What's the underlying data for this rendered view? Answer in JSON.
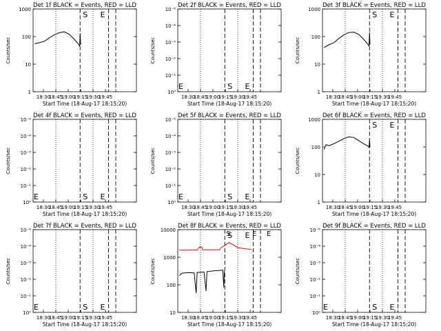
{
  "chart_data": [
    {
      "type": "line",
      "title": "Det 1f BLACK = Events, RED = LLD",
      "ylabel": "Counts/sec",
      "xlabel": "Start Time (18-Aug-17 18:15:20)",
      "yscale": "log",
      "ylim": [
        1,
        1000
      ],
      "yticks": [
        "1",
        "10",
        "100",
        "1000"
      ],
      "xticks": [
        "18:30",
        "18:45",
        "19:00",
        "19:15",
        "19:30",
        "19:45"
      ],
      "markers": [
        "S",
        "E"
      ],
      "series": [
        {
          "color": "#000000",
          "points": [
            [
              0.0,
              55
            ],
            [
              0.05,
              60
            ],
            [
              0.1,
              68
            ],
            [
              0.15,
              90
            ],
            [
              0.2,
              115
            ],
            [
              0.25,
              138
            ],
            [
              0.3,
              148
            ],
            [
              0.35,
              120
            ],
            [
              0.4,
              80
            ],
            [
              0.44,
              55
            ],
            [
              0.455,
              45
            ],
            [
              0.46,
              130
            ],
            [
              0.465,
              50
            ]
          ]
        }
      ]
    },
    {
      "type": "line",
      "title": "Det 2f BLACK = Events, RED = LLD",
      "ylabel": "Counts/sec",
      "xlabel": "Start Time (18-Aug-17 18:15:20)",
      "yscale": "log",
      "ylim": [
        1,
        1000000
      ],
      "yticks": [
        "10⁰",
        "10⁻¹",
        "10⁻²",
        "10⁻³",
        "10⁻⁴",
        "10⁻⁶"
      ],
      "xticks": [
        "18:30",
        "18:45",
        "19:00",
        "19:15",
        "19:30",
        "19:45"
      ],
      "markers": [
        "S",
        "E"
      ],
      "side_marker": "E",
      "series": []
    },
    {
      "type": "line",
      "title": "Det 3f BLACK = Events, RED = LLD",
      "ylabel": "Counts/sec",
      "xlabel": "Start Time (18-Aug-17 18:15:20)",
      "yscale": "log",
      "ylim": [
        1,
        1000
      ],
      "yticks": [
        "1",
        "10",
        "100",
        "1000"
      ],
      "xticks": [
        "18:30",
        "18:45",
        "19:00",
        "19:15",
        "19:30",
        "19:45"
      ],
      "markers": [
        "S",
        "E"
      ],
      "series": [
        {
          "color": "#000000",
          "points": [
            [
              0.0,
              40
            ],
            [
              0.05,
              50
            ],
            [
              0.1,
              60
            ],
            [
              0.15,
              85
            ],
            [
              0.2,
              115
            ],
            [
              0.25,
              140
            ],
            [
              0.3,
              145
            ],
            [
              0.35,
              120
            ],
            [
              0.4,
              80
            ],
            [
              0.44,
              55
            ],
            [
              0.455,
              45
            ],
            [
              0.46,
              140
            ],
            [
              0.465,
              50
            ]
          ]
        }
      ]
    },
    {
      "type": "line",
      "title": "Det 4f BLACK = Events, RED = LLD",
      "ylabel": "Counts/sec",
      "xlabel": "Start Time (18-Aug-17 18:15:20)",
      "yscale": "log",
      "ylim": [
        1,
        1000000
      ],
      "yticks": [
        "10⁰",
        "10⁻¹",
        "10⁻²",
        "10⁻³",
        "10⁻⁴",
        "10⁻⁶"
      ],
      "xticks": [
        "18:30",
        "18:45",
        "19:00",
        "19:15",
        "19:30",
        "19:45"
      ],
      "markers": [
        "S",
        "E"
      ],
      "side_marker": "E",
      "series": []
    },
    {
      "type": "line",
      "title": "Det 5f BLACK = Events, RED = LLD",
      "ylabel": "Counts/sec",
      "xlabel": "Start Time (18-Aug-17 18:15:20)",
      "yscale": "log",
      "ylim": [
        1,
        1000000
      ],
      "yticks": [
        "10⁰",
        "10⁻¹",
        "10⁻²",
        "10⁻³",
        "10⁻⁴",
        "10⁻⁶"
      ],
      "xticks": [
        "18:30",
        "18:45",
        "19:00",
        "19:15",
        "19:30",
        "19:45"
      ],
      "markers": [
        "S",
        "E"
      ],
      "side_marker": "E",
      "series": []
    },
    {
      "type": "line",
      "title": "Det 6f BLACK = Events, RED = LLD",
      "ylabel": "Counts/sec",
      "xlabel": "Start Time (18-Aug-17 18:15:20)",
      "yscale": "log",
      "ylim": [
        1,
        1000
      ],
      "yticks": [
        "1",
        "10",
        "100",
        "1000"
      ],
      "xticks": [
        "18:30",
        "18:45",
        "19:00",
        "19:15",
        "19:30",
        "19:45"
      ],
      "markers": [
        "S",
        "E"
      ],
      "series": [
        {
          "color": "#000000",
          "points": [
            [
              0.0,
              80
            ],
            [
              0.02,
              120
            ],
            [
              0.05,
              110
            ],
            [
              0.1,
              130
            ],
            [
              0.15,
              160
            ],
            [
              0.2,
              200
            ],
            [
              0.25,
              230
            ],
            [
              0.3,
              220
            ],
            [
              0.35,
              170
            ],
            [
              0.4,
              130
            ],
            [
              0.44,
              110
            ],
            [
              0.455,
              95
            ],
            [
              0.46,
              180
            ],
            [
              0.465,
              100
            ]
          ]
        }
      ]
    },
    {
      "type": "line",
      "title": "Det 7f BLACK = Events, RED = LLD",
      "ylabel": "Counts/sec",
      "xlabel": "Start Time (18-Aug-17 18:15:20)",
      "yscale": "log",
      "ylim": [
        1,
        1000000
      ],
      "yticks": [
        "10⁰",
        "10⁻¹",
        "10⁻²",
        "10⁻³",
        "10⁻⁴",
        "10⁻⁶"
      ],
      "xticks": [
        "18:30",
        "18:45",
        "19:00",
        "19:15",
        "19:30",
        "19:45"
      ],
      "markers": [
        "S",
        "E"
      ],
      "side_marker": "E",
      "series": []
    },
    {
      "type": "line",
      "title": "Det 8f BLACK = Events, RED = LLD",
      "ylabel": "Counts/sec",
      "xlabel": "Start Time (18-Aug-17 18:15:20)",
      "yscale": "log",
      "ylim": [
        10,
        10000
      ],
      "yticks": [
        "10",
        "100",
        "1000",
        "10000"
      ],
      "xticks": [
        "18:30",
        "18:45",
        "19:00",
        "19:15",
        "19:30",
        "19:45"
      ],
      "markers": [
        "S",
        "E"
      ],
      "top_markers": [
        "S",
        "E",
        "E"
      ],
      "series": [
        {
          "color": "#000000",
          "points": [
            [
              0.0,
              210
            ],
            [
              0.02,
              260
            ],
            [
              0.05,
              270
            ],
            [
              0.1,
              275
            ],
            [
              0.15,
              270
            ],
            [
              0.17,
              50
            ],
            [
              0.18,
              280
            ],
            [
              0.25,
              290
            ],
            [
              0.27,
              60
            ],
            [
              0.28,
              300
            ],
            [
              0.35,
              320
            ],
            [
              0.4,
              330
            ],
            [
              0.44,
              340
            ],
            [
              0.45,
              80
            ],
            [
              0.455,
              320
            ]
          ]
        },
        {
          "color": "#ff0000",
          "points": [
            [
              0.0,
              1800
            ],
            [
              0.1,
              1820
            ],
            [
              0.2,
              1850
            ],
            [
              0.22,
              2300
            ],
            [
              0.25,
              2300
            ],
            [
              0.26,
              1850
            ],
            [
              0.35,
              1850
            ],
            [
              0.45,
              1850
            ],
            [
              0.46,
              2200
            ],
            [
              0.5,
              2600
            ],
            [
              0.55,
              3400
            ],
            [
              0.6,
              2800
            ],
            [
              0.65,
              2200
            ],
            [
              0.7,
              2100
            ],
            [
              0.75,
              2000
            ],
            [
              0.8,
              1900
            ]
          ]
        }
      ]
    },
    {
      "type": "line",
      "title": "Det 9f BLACK = Events, RED = LLD",
      "ylabel": "Counts/sec",
      "xlabel": "Start Time (18-Aug-17 18:15:20)",
      "yscale": "log",
      "ylim": [
        1,
        1000000
      ],
      "yticks": [
        "10⁰",
        "10⁻¹",
        "10⁻²",
        "10⁻³",
        "10⁻⁴",
        "10⁻⁶"
      ],
      "xticks": [
        "18:30",
        "18:45",
        "19:00",
        "19:15",
        "19:30",
        "19:45"
      ],
      "markers": [
        "S",
        "E"
      ],
      "side_marker": "E",
      "series": []
    }
  ]
}
